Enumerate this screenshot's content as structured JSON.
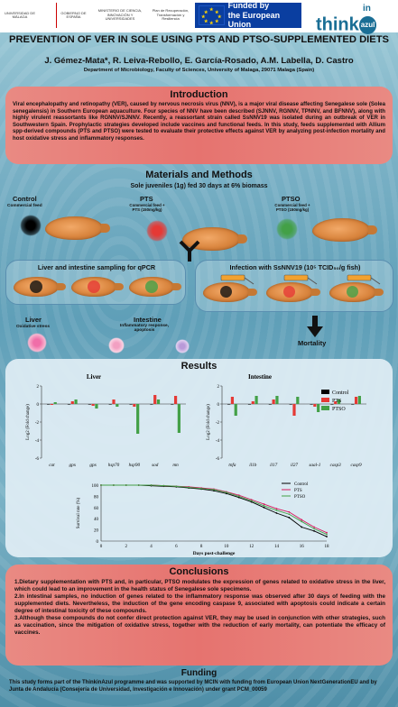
{
  "header": {
    "logo1": "UNIVERSIDAD DE MÁLAGA",
    "logo2": "GOBIERNO DE ESPAÑA",
    "logo3": "MINISTERIO DE CIENCIA, INNOVACIÓN Y UNIVERSIDADES",
    "logo4": "Plan de Recuperación, Transformación y Resiliencia",
    "eu_line1": "Funded by",
    "eu_line2": "the European Union",
    "think_logo": "think",
    "think_logo_in": "in",
    "think_logo_azul": "azul"
  },
  "title": "PREVENTION OF VER IN SOLE USING PTS AND PTSO-SUPPLEMENTED DIETS",
  "authors": "J. Gémez-Mata*, R. Leiva-Rebollo, E. García-Rosado, A.M. Labella, D. Castro",
  "department": "Department of Microbiology, Faculty of Sciences, University of Malaga, 29071 Malaga (Spain)",
  "introduction": {
    "heading": "Introduction",
    "text": "Viral encephalopathy and retinopathy (VER), caused by nervous necrosis virus (NNV), is a major viral disease affecting Senegalese sole (Solea senegalensis) in Southern European aquaculture. Four species of NNV have been described (SJNNV, RGNNV, TPNNV, and BFNNV), along with highly virulent reassortants like RGNNV/SJNNV. Recently, a reassortant strain called SsNNV19 was isolated during an outbreak of VER in Southwestern Spain. Prophylactic strategies developed include vaccines and functional feeds. In this study, feeds supplemented with Allium spp-derived compounds (PTS and PTSO) were tested to evaluate their protective effects against VER by analyzing post-infection mortality and host oxidative stress and inflammatory responses."
  },
  "methods": {
    "heading": "Materials and Methods",
    "subtitle": "Sole juveniles (1g) fed 30 days at 6% biomass",
    "control": "Control",
    "control_feed": "Commercial feed",
    "pts": "PTS",
    "pts_feed": "Commercial feed +",
    "pts_dose": "PTS (150mg/kg)",
    "ptso": "PTSO",
    "ptso_feed": "Commercial feed +",
    "ptso_dose": "PTSO (150mg/kg)",
    "sampling": "Liver and intestine sampling for qPCR",
    "infection": "Infection with SsNNV19 (10⁵ TCID₅₀/g fish)",
    "liver": "Liver",
    "liver_sub": "Oxidative stress",
    "intestine": "Intestine",
    "intestine_sub1": "Inflammatory response,",
    "intestine_sub2": "apoptosis",
    "mortality": "Mortality"
  },
  "results": {
    "heading": "Results",
    "legend": [
      "Control",
      "PTS",
      "PTSO"
    ],
    "liver_title": "Liver",
    "intestine_title": "Intestine",
    "ylabel_gene": "Log2 (Fold change)",
    "survival_ylabel": "Survival rate (%)",
    "survival_xlabel": "Days post-challenge",
    "star": "*"
  },
  "chart_data": [
    {
      "type": "bar",
      "title": "Liver",
      "ylabel": "Log2 (Fold change)",
      "categories": [
        "cat",
        "gpx",
        "gpx",
        "hsp70",
        "hsp90",
        "sod",
        "mn"
      ],
      "ylim": [
        -6,
        2
      ],
      "series": [
        {
          "name": "Control",
          "values": [
            0,
            0,
            0,
            0,
            0,
            0,
            0
          ]
        },
        {
          "name": "PTS",
          "values": [
            -0.1,
            0.3,
            -0.2,
            0.5,
            -0.3,
            1.0,
            0.9
          ]
        },
        {
          "name": "PTSO",
          "values": [
            0.2,
            0.5,
            -0.5,
            -0.3,
            -3.3,
            0.5,
            -3.2
          ]
        }
      ]
    },
    {
      "type": "bar",
      "title": "Intestine",
      "ylabel": "Log2 (Fold change)",
      "categories": [
        "tnfa",
        "il1b",
        "il17",
        "il27",
        "saal-1",
        "casp3",
        "casp9"
      ],
      "ylim": [
        -6,
        2
      ],
      "series": [
        {
          "name": "Control",
          "values": [
            0,
            0,
            0,
            0,
            0,
            0,
            0
          ]
        },
        {
          "name": "PTS",
          "values": [
            0.8,
            0.3,
            0.5,
            -1.3,
            -0.3,
            0.3,
            0.8
          ]
        },
        {
          "name": "PTSO",
          "values": [
            -1.3,
            0.9,
            0.9,
            0.8,
            -0.9,
            0.5,
            0.9
          ]
        }
      ]
    },
    {
      "type": "line",
      "ylabel": "Survival rate (%)",
      "xlabel": "Days post-challenge",
      "x": [
        0,
        1,
        2,
        3,
        4,
        5,
        6,
        7,
        8,
        9,
        10,
        11,
        12,
        13,
        14,
        15,
        16,
        17,
        18
      ],
      "xticks": [
        0,
        2,
        4,
        6,
        8,
        10,
        12,
        14,
        16,
        18
      ],
      "ylim": [
        0,
        100
      ],
      "yticks": [
        0,
        20,
        40,
        60,
        80,
        100
      ],
      "series": [
        {
          "name": "Control",
          "color": "#000000",
          "values": [
            100,
            100,
            100,
            100,
            99,
            98,
            97,
            95,
            93,
            90,
            85,
            78,
            70,
            60,
            50,
            42,
            25,
            18,
            8
          ]
        },
        {
          "name": "PTS",
          "color": "#d81b60",
          "values": [
            100,
            100,
            100,
            100,
            100,
            99,
            98,
            97,
            95,
            93,
            88,
            82,
            74,
            66,
            58,
            52,
            38,
            25,
            15
          ]
        },
        {
          "name": "PTSO",
          "color": "#43a047",
          "values": [
            100,
            100,
            100,
            100,
            100,
            99,
            98,
            96,
            94,
            92,
            87,
            80,
            72,
            63,
            55,
            48,
            35,
            22,
            12
          ]
        }
      ]
    }
  ],
  "conclusions": {
    "heading": "Conclusions",
    "items": [
      "1.Dietary supplementation with PTS and, in particular, PTSO modulates the expression of genes related to oxidative stress in the liver, which could lead to an improvement in the health status of Senegalese sole specimens.",
      "2.In intestinal samples, no induction of genes related to the inflammatory response was observed after 30 days of feeding with the supplemented diets. Nevertheless, the induction of the gene encoding caspase 9, associated with apoptosis could indicate a certain degree of intestinal toxicity of these compounds.",
      "3.Although these compounds do not confer direct protection against VER, they may be used in conjunction with other strategies, such as vaccination, since the mitigation of oxidative stress, together with the reduction of early mortality, can potentiate the efficacy of vaccines."
    ]
  },
  "funding": {
    "heading": "Funding",
    "text": "This study forms part of the ThinkinAzul programme and was supported by MCIN with funding from European Union NextGenerationEU and by Junta de Andalucía (Consejería de Universidad, Investigación e Innovación) under grant PCM_00059"
  },
  "colors": {
    "accent": "#e6736f",
    "eu_blue": "#0a3ea0",
    "pts_red": "#e53935",
    "ptso_green": "#43a047"
  }
}
